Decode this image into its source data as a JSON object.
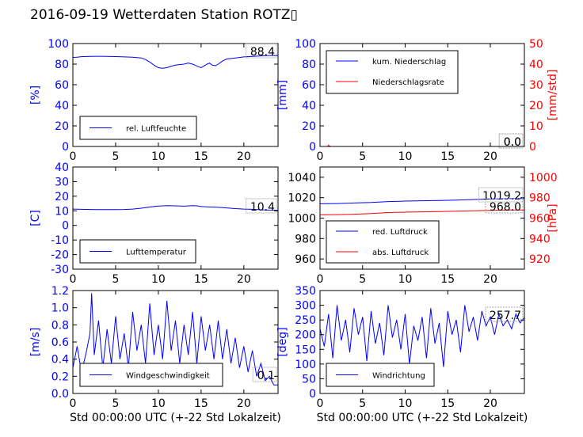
{
  "title": "2016-09-19 Wetterdaten Station ROTZ▯",
  "colors": {
    "blue": "#0000ff",
    "red": "#ff0000",
    "black": "#000000"
  },
  "chart_data": [
    {
      "id": "humidity",
      "type": "line",
      "ylabel": "[%]",
      "ylim": [
        0,
        100
      ],
      "yticks": [
        0,
        20,
        40,
        60,
        80,
        100
      ],
      "xlim": [
        0,
        24
      ],
      "xticks": [
        0,
        5,
        10,
        15,
        20
      ],
      "xlabel": "",
      "annotations": [
        "88.4"
      ],
      "legend": "bottom-left",
      "series": [
        {
          "name": "rel. Luftfeuchte",
          "color": "#0000ff",
          "axis": "left",
          "x": [
            0,
            0.5,
            1,
            2,
            3,
            4,
            5,
            6,
            7,
            8,
            8.5,
            9,
            9.5,
            10,
            10.5,
            11,
            11.5,
            12,
            12.5,
            13,
            13.5,
            14,
            14.3,
            14.7,
            15,
            15.3,
            15.7,
            16,
            16.3,
            16.7,
            17,
            17.5,
            18,
            19,
            20,
            21,
            22,
            23,
            24
          ],
          "y": [
            86.5,
            86.8,
            87.2,
            87.5,
            87.6,
            87.5,
            87.3,
            87,
            86.8,
            86,
            84.5,
            82,
            79,
            76.5,
            76,
            76.5,
            78,
            79,
            79.5,
            80,
            81,
            80,
            79,
            77.5,
            76.5,
            78,
            80,
            81,
            79,
            78.5,
            80,
            83,
            85,
            86,
            87,
            87.5,
            88,
            88.4,
            88.4
          ]
        }
      ]
    },
    {
      "id": "precipitation",
      "type": "line",
      "ylabel": "[mm]",
      "ylim": [
        0,
        100
      ],
      "yticks": [
        0,
        20,
        40,
        60,
        80,
        100
      ],
      "ylabel_right": "[mm/std]",
      "ylim_right": [
        0,
        50
      ],
      "yticks_right": [
        0,
        10,
        20,
        30,
        40,
        50
      ],
      "xlim": [
        0,
        24
      ],
      "xticks": [
        0,
        5,
        10,
        15,
        20
      ],
      "xlabel": "",
      "annotations": [
        "0.0",
        "0.0"
      ],
      "legend": "top-left",
      "series": [
        {
          "name": "kum. Niederschlag",
          "color": "#0000ff",
          "axis": "left",
          "x": [
            0,
            24
          ],
          "y": [
            0,
            0
          ]
        },
        {
          "name": "Niederschlagsrate",
          "color": "#ff0000",
          "axis": "right",
          "x": [
            0,
            0.9,
            1.0,
            1.1,
            1.3,
            24
          ],
          "y": [
            0,
            0,
            0.6,
            0.2,
            0,
            0
          ]
        }
      ]
    },
    {
      "id": "temperature",
      "type": "line",
      "ylabel": "[C]",
      "ylim": [
        -30,
        40
      ],
      "yticks": [
        -30,
        -20,
        -10,
        0,
        10,
        20,
        30,
        40
      ],
      "xlim": [
        0,
        24
      ],
      "xticks": [
        0,
        5,
        10,
        15,
        20
      ],
      "xlabel": "",
      "annotations": [
        "10.4"
      ],
      "legend": "bottom-left",
      "series": [
        {
          "name": "Lufttemperatur",
          "color": "#0000ff",
          "axis": "left",
          "x": [
            0,
            1,
            2,
            3,
            4,
            5,
            6,
            7,
            8,
            9,
            10,
            11,
            12,
            13,
            14,
            14.5,
            15,
            16,
            17,
            18,
            19,
            20,
            21,
            22,
            23,
            24
          ],
          "y": [
            11.2,
            11.0,
            10.9,
            10.8,
            10.8,
            10.8,
            10.9,
            11.2,
            11.8,
            12.6,
            13.3,
            13.6,
            13.4,
            13.2,
            13.5,
            13.4,
            12.9,
            12.6,
            12.4,
            12.0,
            11.5,
            11.2,
            11.0,
            10.7,
            10.5,
            10.4
          ]
        }
      ]
    },
    {
      "id": "pressure",
      "type": "line",
      "ylabel": "",
      "ylim": [
        950,
        1050
      ],
      "yticks": [
        960,
        980,
        1000,
        1020,
        1040
      ],
      "ylabel_right": "[hPa]",
      "ylim_right": [
        910,
        1010
      ],
      "yticks_right": [
        920,
        940,
        960,
        980,
        1000
      ],
      "xlim": [
        0,
        24
      ],
      "xticks": [
        0,
        5,
        10,
        15,
        20
      ],
      "xlabel": "",
      "annotations": [
        "1019.2",
        "968.0"
      ],
      "legend": "bottom-left",
      "series": [
        {
          "name": "red. Luftdruck",
          "color": "#0000ff",
          "axis": "left",
          "x": [
            0,
            2,
            4,
            6,
            8,
            10,
            12,
            14,
            16,
            18,
            20,
            22,
            24
          ],
          "y": [
            1014.0,
            1014.3,
            1014.8,
            1015.3,
            1016.2,
            1016.7,
            1017.0,
            1017.3,
            1017.7,
            1018.2,
            1018.7,
            1019.1,
            1019.2
          ]
        },
        {
          "name": "abs. Luftdruck",
          "color": "#ff0000",
          "axis": "right",
          "x": [
            0,
            2,
            4,
            6,
            8,
            10,
            12,
            14,
            16,
            18,
            20,
            22,
            24
          ],
          "y": [
            963.2,
            963.4,
            963.8,
            964.5,
            965.4,
            965.8,
            966.1,
            966.4,
            966.8,
            967.2,
            967.6,
            967.9,
            968.0
          ]
        }
      ]
    },
    {
      "id": "wind_speed",
      "type": "line",
      "ylabel": "[m/s]",
      "ylim": [
        0,
        1.2
      ],
      "yticks": [
        0.0,
        0.2,
        0.4,
        0.6,
        0.8,
        1.0,
        1.2
      ],
      "ytick_labels": [
        "0.0",
        "0.2",
        "0.4",
        "0.6",
        "0.8",
        "1.0",
        "1.2"
      ],
      "xlim": [
        0,
        24
      ],
      "xticks": [
        0,
        5,
        10,
        15,
        20
      ],
      "xlabel": "Std 00:00:00 UTC (+-22 Std Lokalzeit)",
      "annotations": [
        "0.1"
      ],
      "legend": "bottom-left",
      "series": [
        {
          "name": "Windgeschwindigkeit",
          "color": "#0000ff",
          "axis": "left",
          "x": [
            0,
            0.5,
            1,
            1.5,
            2,
            2.2,
            2.5,
            3,
            3.5,
            4,
            4.5,
            5,
            5.5,
            6,
            6.5,
            7,
            7.5,
            8,
            8.5,
            9,
            9.5,
            10,
            10.5,
            11,
            11.5,
            12,
            12.5,
            13,
            13.5,
            14,
            14.5,
            15,
            15.5,
            16,
            16.5,
            17,
            17.5,
            18,
            18.5,
            19,
            19.5,
            20,
            20.5,
            21,
            21.5,
            22,
            22.5,
            23,
            23.5,
            24
          ],
          "y": [
            0.3,
            0.55,
            0.25,
            0.45,
            0.7,
            1.17,
            0.45,
            0.85,
            0.3,
            0.75,
            0.35,
            0.9,
            0.4,
            0.7,
            0.3,
            0.95,
            0.5,
            0.8,
            0.35,
            1.05,
            0.45,
            0.8,
            0.4,
            1.08,
            0.5,
            0.85,
            0.35,
            0.8,
            0.45,
            0.95,
            0.35,
            0.9,
            0.5,
            0.8,
            0.4,
            0.85,
            0.4,
            0.75,
            0.35,
            0.65,
            0.3,
            0.55,
            0.25,
            0.5,
            0.2,
            0.35,
            0.15,
            0.2,
            0.1,
            0.1
          ]
        }
      ]
    },
    {
      "id": "wind_direction",
      "type": "line",
      "ylabel": "[deg]",
      "ylim": [
        0,
        350
      ],
      "yticks": [
        0,
        50,
        100,
        150,
        200,
        250,
        300,
        350
      ],
      "xlim": [
        0,
        24
      ],
      "xticks": [
        0,
        5,
        10,
        15,
        20
      ],
      "xlabel": "Std 00:00:00 UTC (+-22 Std Lokalzeit)",
      "annotations": [
        "257.7"
      ],
      "legend": "bottom-left",
      "series": [
        {
          "name": "Windrichtung",
          "color": "#0000ff",
          "axis": "left",
          "x": [
            0,
            0.5,
            1,
            1.5,
            2,
            2.5,
            3,
            3.5,
            4,
            4.5,
            5,
            5.5,
            6,
            6.5,
            7,
            7.5,
            8,
            8.5,
            9,
            9.5,
            10,
            10.5,
            11,
            11.5,
            12,
            12.5,
            13,
            13.5,
            14,
            14.5,
            15,
            15.5,
            16,
            16.5,
            17,
            17.5,
            18,
            18.5,
            19,
            19.5,
            20,
            20.5,
            21,
            21.5,
            22,
            22.5,
            23,
            23.5,
            24
          ],
          "y": [
            220,
            160,
            270,
            120,
            300,
            180,
            250,
            140,
            290,
            200,
            260,
            110,
            280,
            170,
            240,
            130,
            300,
            190,
            250,
            150,
            270,
            100,
            230,
            180,
            260,
            120,
            290,
            170,
            240,
            90,
            280,
            200,
            250,
            140,
            300,
            210,
            260,
            180,
            280,
            230,
            260,
            200,
            270,
            230,
            250,
            220,
            270,
            240,
            257.7
          ]
        }
      ]
    }
  ]
}
